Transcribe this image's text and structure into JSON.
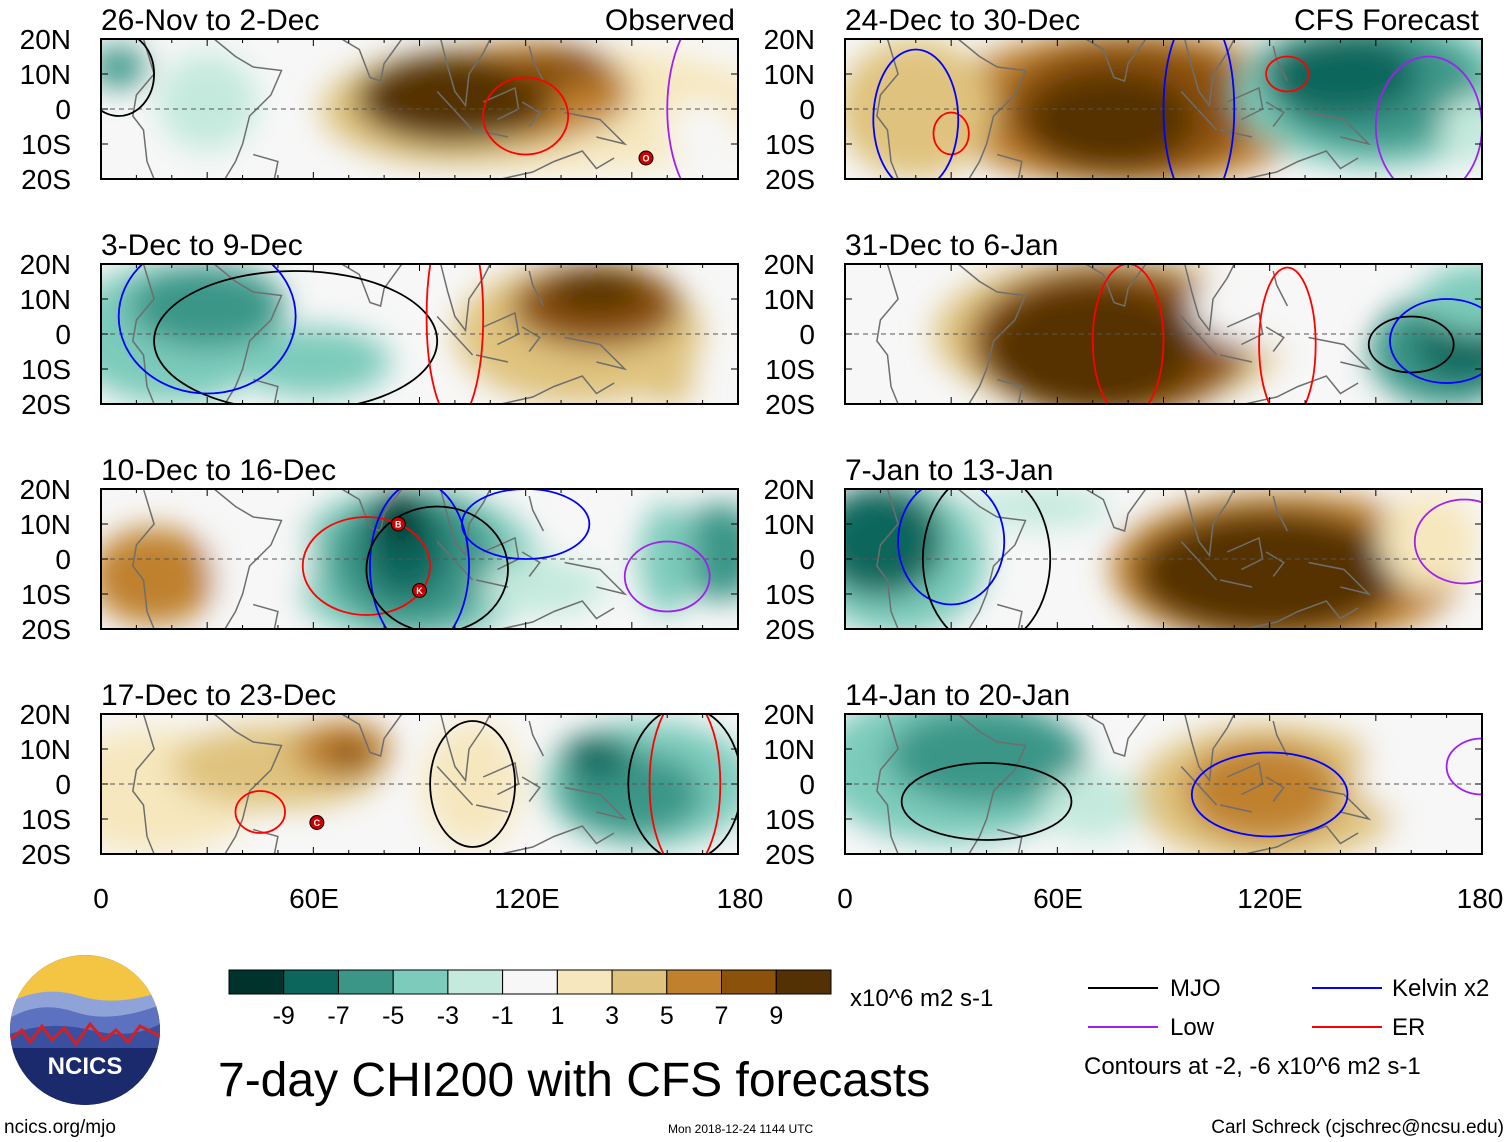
{
  "title": "7-day CHI200 with CFS forecasts",
  "chart_data": {
    "type": "heatmap",
    "variable": "7-day CHI200",
    "units": "x10^6 m2 s-1",
    "lat_labels": [
      "20N",
      "10N",
      "0",
      "10S",
      "20S"
    ],
    "lon_labels": [
      "0",
      "60E",
      "120E",
      "180"
    ],
    "lat_range": [
      -20,
      20
    ],
    "lon_range": [
      0,
      180
    ],
    "colorbar": {
      "labels": [
        "-9",
        "-7",
        "-5",
        "-3",
        "-1",
        "1",
        "3",
        "5",
        "7",
        "9"
      ],
      "colors": [
        "#00332b",
        "#0d665c",
        "#3b9688",
        "#7ccbbb",
        "#c4eadd",
        "#f7f7f7",
        "#f6e7be",
        "#dfc27d",
        "#bf812d",
        "#8c510a",
        "#543005"
      ]
    },
    "panels": [
      {
        "name": "panel-1",
        "period": "26-Nov to 2-Dec",
        "label": "Observed",
        "storms": [
          {
            "letter": "O",
            "lon": 154,
            "lat": -14
          }
        ]
      },
      {
        "name": "panel-2",
        "period": "3-Dec to 9-Dec",
        "label": "",
        "storms": []
      },
      {
        "name": "panel-3",
        "period": "10-Dec to 16-Dec",
        "label": "",
        "storms": [
          {
            "letter": "B",
            "lon": 84,
            "lat": 10
          },
          {
            "letter": "K",
            "lon": 90,
            "lat": -9
          }
        ]
      },
      {
        "name": "panel-4",
        "period": "17-Dec to 23-Dec",
        "label": "",
        "storms": [
          {
            "letter": "C",
            "lon": 61,
            "lat": -11
          }
        ]
      },
      {
        "name": "panel-5",
        "period": "24-Dec to 30-Dec",
        "label": "CFS Forecast",
        "storms": []
      },
      {
        "name": "panel-6",
        "period": "31-Dec to 6-Jan",
        "label": "",
        "storms": []
      },
      {
        "name": "panel-7",
        "period": "7-Jan to 13-Jan",
        "label": "",
        "storms": []
      },
      {
        "name": "panel-8",
        "period": "14-Jan to 20-Jan",
        "label": "",
        "storms": []
      }
    ]
  },
  "legend": {
    "entries": [
      {
        "label": "MJO",
        "color": "#000000"
      },
      {
        "label": "Kelvin x2",
        "color": "#0000ff"
      },
      {
        "label": "Low",
        "color": "#a020f0"
      },
      {
        "label": "ER",
        "color": "#ff0000"
      }
    ],
    "contours_note": "Contours at -2, -6 x10^6 m2 s-1"
  },
  "logo": {
    "text": "NCICS"
  },
  "footer": {
    "url": "ncics.org/mjo",
    "timestamp": "Mon 2018-12-24 1144 UTC",
    "author": "Carl Schreck (cjschrec@ncsu.edu)"
  }
}
